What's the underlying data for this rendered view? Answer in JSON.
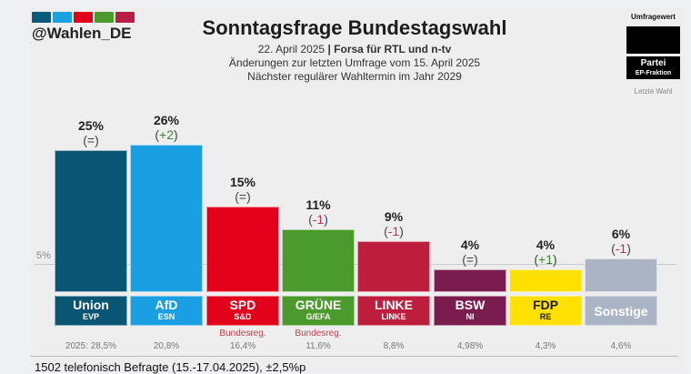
{
  "header": {
    "handle": "@Wahlen_DE",
    "logo_colors": [
      "#0a5a7a",
      "#1ba0e0",
      "#e30019",
      "#4a9a2e",
      "#b81d45"
    ],
    "title": "Sonntagsfrage Bundestagswahl",
    "date": "22. April 2025",
    "separator": "|",
    "institute": "Forsa für RTL und n-tv",
    "changes_note": "Änderungen zur letzten Umfrage vom 15. April 2025",
    "next_election": "Nächster regulärer Wahltermin im Jahr 2029"
  },
  "legend": {
    "value_label": "Umfragewert",
    "party_label": "Partei",
    "group_label": "EP-Fraktion",
    "last_label": "Letzte Wahl"
  },
  "footer": {
    "sample": "1502 telefonisch Befragte (15.-17.04.2025), ±2,5%p"
  },
  "chart_data": {
    "type": "bar",
    "title": "Sonntagsfrage Bundestagswahl",
    "xlabel": "",
    "ylabel": "",
    "ylim": [
      0,
      26
    ],
    "threshold": {
      "value": 5,
      "label": "5%"
    },
    "categories": [
      "Union",
      "AfD",
      "SPD",
      "GRÜNE",
      "LINKE",
      "BSW",
      "FDP",
      "Sonstige"
    ],
    "values": [
      25,
      26,
      15,
      11,
      9,
      4,
      4,
      6
    ],
    "parties": [
      {
        "name": "Union",
        "group": "EVP",
        "value": 25,
        "value_label": "25%",
        "change": "=",
        "change_type": "eq",
        "color": "#0a5573",
        "text_color": "#ffffff",
        "note": "",
        "last_election": "2025: 28,5%"
      },
      {
        "name": "AfD",
        "group": "ESN",
        "value": 26,
        "value_label": "26%",
        "change": "+2",
        "change_type": "pos",
        "color": "#1aa0e2",
        "text_color": "#ffffff",
        "note": "",
        "last_election": "20,8%"
      },
      {
        "name": "SPD",
        "group": "S&D",
        "value": 15,
        "value_label": "15%",
        "change": "=",
        "change_type": "eq",
        "color": "#e3001b",
        "text_color": "#ffffff",
        "note": "Bundesreg.",
        "last_election": "16,4%"
      },
      {
        "name": "GRÜNE",
        "group": "G/EFA",
        "value": 11,
        "value_label": "11%",
        "change": "-1",
        "change_type": "neg",
        "color": "#4a9a2e",
        "text_color": "#ffffff",
        "note": "Bundesreg.",
        "last_election": "11,6%"
      },
      {
        "name": "LINKE",
        "group": "LINKE",
        "value": 9,
        "value_label": "9%",
        "change": "-1",
        "change_type": "neg",
        "color": "#be1e3e",
        "text_color": "#ffffff",
        "note": "",
        "last_election": "8,8%"
      },
      {
        "name": "BSW",
        "group": "NI",
        "value": 4,
        "value_label": "4%",
        "change": "=",
        "change_type": "eq",
        "color": "#7a1d4e",
        "text_color": "#ffffff",
        "note": "",
        "last_election": "4,98%"
      },
      {
        "name": "FDP",
        "group": "RE",
        "value": 4,
        "value_label": "4%",
        "change": "+1",
        "change_type": "pos",
        "color": "#ffe000",
        "text_color": "#1a1a1a",
        "note": "",
        "last_election": "4,3%"
      },
      {
        "name": "Sonstige",
        "group": "",
        "value": 6,
        "value_label": "6%",
        "change": "-1",
        "change_type": "neg",
        "color": "#aab4c4",
        "text_color": "#ffffff",
        "note": "",
        "last_election": "4,6%"
      }
    ]
  }
}
